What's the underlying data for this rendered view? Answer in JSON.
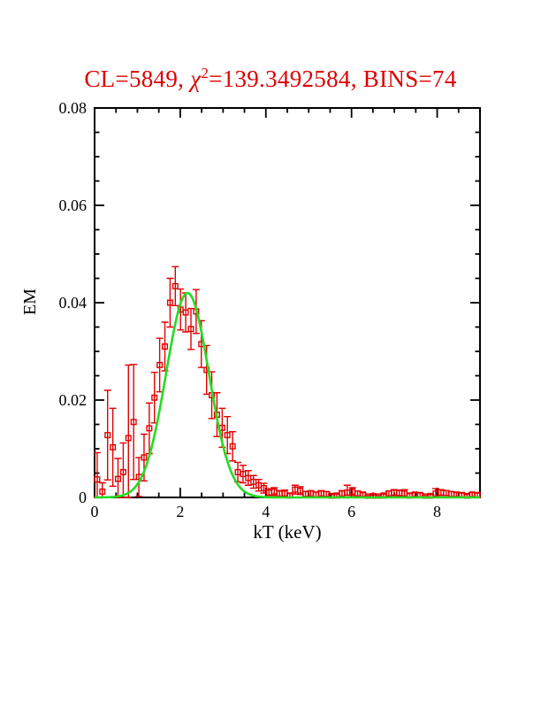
{
  "title": {
    "part1": "CL=5849, ",
    "chi_symbol": "χ",
    "chi_exponent": "2",
    "part2": "=139.3492584, BINS=74",
    "color": "#dd0000"
  },
  "chart_data": {
    "type": "scatter",
    "title": "CL=5849, χ²=139.3492584, BINS=74",
    "xlabel": "kT (keV)",
    "ylabel": "EM",
    "xlim": [
      0,
      9
    ],
    "ylim": [
      0,
      0.08
    ],
    "grid": false,
    "legend": "none",
    "x_major_ticks": [
      0,
      2,
      4,
      6,
      8
    ],
    "x_major_tick_labels": [
      "0",
      "2",
      "4",
      "6",
      "8"
    ],
    "x_minor_tick_step": 0.5,
    "y_major_ticks": [
      0,
      0.02,
      0.04,
      0.06,
      0.08
    ],
    "y_major_tick_labels": [
      "0",
      "0.02",
      "0.04",
      "0.06",
      "0.08"
    ],
    "y_minor_tick_step": 0.005,
    "axis_color": "#000000",
    "series": [
      {
        "name": "binned EM data",
        "kind": "scatter-errorbar",
        "marker": "open-square",
        "color": "#e00000",
        "bins": 74,
        "points": [
          [
            0.061,
            0.0037,
            0.0055
          ],
          [
            0.182,
            0.0012,
            0.0018
          ],
          [
            0.304,
            0.0128,
            0.0092
          ],
          [
            0.426,
            0.0103,
            0.008
          ],
          [
            0.547,
            0.0038,
            0.0042
          ],
          [
            0.669,
            0.0052,
            0.006
          ],
          [
            0.79,
            0.0122,
            0.015
          ],
          [
            0.912,
            0.0155,
            0.0118
          ],
          [
            1.034,
            0.0042,
            0.004
          ],
          [
            1.155,
            0.0082,
            0.0048
          ],
          [
            1.277,
            0.0142,
            0.0052
          ],
          [
            1.398,
            0.0205,
            0.0052
          ],
          [
            1.52,
            0.0272,
            0.0055
          ],
          [
            1.642,
            0.031,
            0.005
          ],
          [
            1.763,
            0.04,
            0.005
          ],
          [
            1.885,
            0.0434,
            0.004
          ],
          [
            2.007,
            0.0386,
            0.0042
          ],
          [
            2.128,
            0.038,
            0.004
          ],
          [
            2.25,
            0.0346,
            0.0042
          ],
          [
            2.372,
            0.0382,
            0.0045
          ],
          [
            2.493,
            0.0315,
            0.0048
          ],
          [
            2.615,
            0.0262,
            0.005
          ],
          [
            2.736,
            0.021,
            0.0048
          ],
          [
            2.858,
            0.017,
            0.0045
          ],
          [
            2.98,
            0.0143,
            0.004
          ],
          [
            3.101,
            0.0128,
            0.0038
          ],
          [
            3.223,
            0.0105,
            0.003
          ],
          [
            3.345,
            0.0052,
            0.002
          ],
          [
            3.466,
            0.0048,
            0.0018
          ],
          [
            3.588,
            0.004,
            0.0015
          ],
          [
            3.71,
            0.0032,
            0.0013
          ],
          [
            3.831,
            0.0025,
            0.0012
          ],
          [
            3.953,
            0.0019,
            0.001
          ],
          [
            4.074,
            0.001,
            0.0008
          ],
          [
            4.196,
            0.0012,
            0.0008
          ],
          [
            4.318,
            0.0008,
            0.0006
          ],
          [
            4.439,
            0.0008,
            0.0007
          ],
          [
            4.561,
            0.0004,
            0.0004
          ],
          [
            4.682,
            0.0016,
            0.0009
          ],
          [
            4.804,
            0.0014,
            0.0008
          ],
          [
            4.926,
            0.0007,
            0.0005
          ],
          [
            5.047,
            0.0008,
            0.0006
          ],
          [
            5.169,
            0.0006,
            0.0005
          ],
          [
            5.291,
            0.0008,
            0.0006
          ],
          [
            5.412,
            0.0007,
            0.0005
          ],
          [
            5.534,
            0.0003,
            0.0003
          ],
          [
            5.656,
            0.0004,
            0.0003
          ],
          [
            5.777,
            0.0008,
            0.0006
          ],
          [
            5.899,
            0.001,
            0.0015
          ],
          [
            6.02,
            0.0012,
            0.0008
          ],
          [
            6.142,
            0.0008,
            0.0005
          ],
          [
            6.264,
            0.0006,
            0.0004
          ],
          [
            6.385,
            0.0002,
            0.0002
          ],
          [
            6.507,
            0.0003,
            0.0002
          ],
          [
            6.629,
            0.0002,
            0.0002
          ],
          [
            6.75,
            0.0004,
            0.0003
          ],
          [
            6.872,
            0.0008,
            0.0005
          ],
          [
            6.993,
            0.001,
            0.0006
          ],
          [
            7.115,
            0.0009,
            0.0006
          ],
          [
            7.237,
            0.0008,
            0.0008
          ],
          [
            7.358,
            0.0004,
            0.0004
          ],
          [
            7.48,
            0.0006,
            0.0004
          ],
          [
            7.601,
            0.0005,
            0.0004
          ],
          [
            7.723,
            0.0002,
            0.0002
          ],
          [
            7.845,
            0.0003,
            0.0003
          ],
          [
            7.966,
            0.0008,
            0.001
          ],
          [
            8.088,
            0.001,
            0.0006
          ],
          [
            8.209,
            0.0009,
            0.0005
          ],
          [
            8.331,
            0.0007,
            0.0005
          ],
          [
            8.453,
            0.0006,
            0.0004
          ],
          [
            8.574,
            0.0005,
            0.0004
          ],
          [
            8.696,
            0.0003,
            0.0003
          ],
          [
            8.818,
            0.0006,
            0.0004
          ],
          [
            8.939,
            0.0005,
            0.0004
          ]
        ]
      },
      {
        "name": "model fit",
        "kind": "line",
        "shape": "gaussian",
        "color": "#22dd22",
        "amplitude": 0.042,
        "mean": 2.17,
        "sigma": 0.5
      }
    ]
  }
}
